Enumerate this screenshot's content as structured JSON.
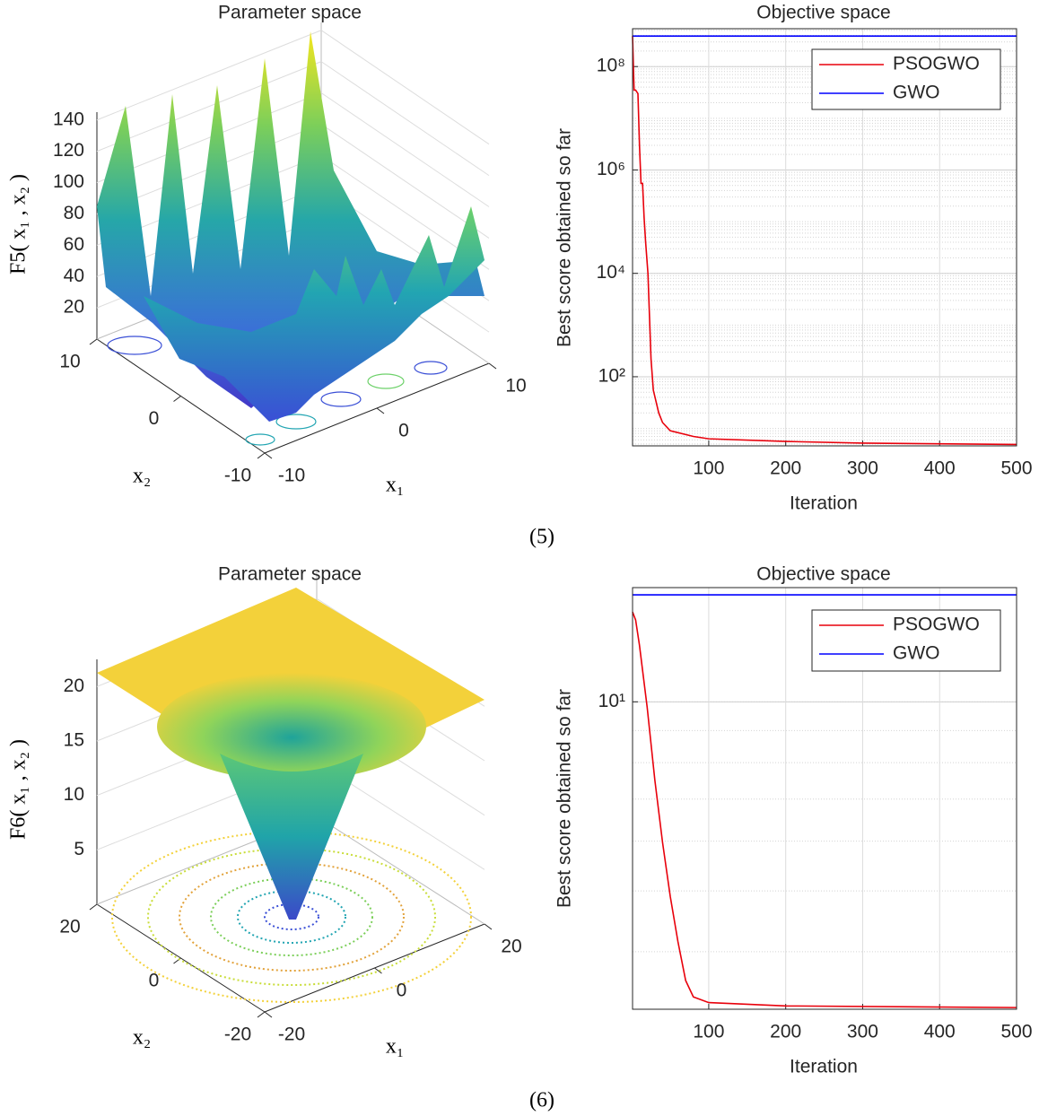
{
  "chart_data": [
    {
      "type": "surface3d",
      "title": "Parameter space",
      "zlabel": "F5( x₁ , x₂ )",
      "xlabel": "x₁",
      "ylabel": "x₂",
      "xlim": [
        -10,
        10
      ],
      "xticks": [
        -10,
        0,
        10
      ],
      "ylim": [
        -10,
        10
      ],
      "yticks": [
        -10,
        0,
        10
      ],
      "zlim": [
        0,
        145
      ],
      "zticks": [
        20,
        40,
        60,
        80,
        100,
        120,
        140
      ],
      "grid": true
    },
    {
      "type": "line",
      "title": "Objective space",
      "xlabel": "Iteration",
      "ylabel": "Best score obtained so far",
      "log_y": true,
      "grid": true,
      "minor_grid": true,
      "legend": "northeast",
      "xlim": [
        1,
        500
      ],
      "xticks": [
        100,
        200,
        300,
        400,
        500
      ],
      "ylim": [
        4.6,
        540000000
      ],
      "yticks": [
        {
          "value": 100,
          "label": "10²"
        },
        {
          "value": 10000,
          "label": "10⁴"
        },
        {
          "value": 1000000,
          "label": "10⁶"
        },
        {
          "value": 100000000,
          "label": "10⁸"
        }
      ],
      "series": [
        {
          "name": "PSOGWO",
          "color": "#e8000b",
          "x": [
            1,
            3,
            5,
            8,
            10,
            12,
            14,
            16,
            18,
            21,
            25,
            28,
            35,
            40,
            50,
            80,
            100,
            200,
            300,
            500
          ],
          "values": [
            390000000,
            35000000,
            35000000,
            30000000,
            3000000,
            550000,
            550000,
            120000,
            40000,
            10000,
            220,
            55,
            20,
            13,
            9,
            7,
            6.3,
            5.6,
            5.2,
            4.9
          ]
        },
        {
          "name": "GWO",
          "color": "#0000ff",
          "x": [
            1,
            500
          ],
          "values": [
            390000000,
            390000000
          ]
        }
      ]
    },
    {
      "type": "surface3d",
      "title": "Parameter space",
      "zlabel": "F6( x₁ , x₂ )",
      "xlabel": "x₁",
      "ylabel": "x₂",
      "xlim": [
        -20,
        20
      ],
      "xticks": [
        -20,
        0,
        20
      ],
      "ylim": [
        -20,
        20
      ],
      "yticks": [
        -20,
        0,
        20
      ],
      "zlim": [
        0,
        22.5
      ],
      "zticks": [
        5,
        10,
        15,
        20
      ],
      "grid": true
    },
    {
      "type": "line",
      "title": "Objective space",
      "xlabel": "Iteration",
      "ylabel": "Best score obtained so far",
      "log_y": true,
      "grid": true,
      "minor_grid": true,
      "legend": "northeast",
      "xlim": [
        1,
        500
      ],
      "xticks": [
        100,
        200,
        300,
        400,
        500
      ],
      "ylim": [
        3.24,
        15.2
      ],
      "yticks": [
        {
          "value": 10,
          "label": "10¹"
        }
      ],
      "series": [
        {
          "name": "PSOGWO",
          "color": "#e8000b",
          "x": [
            1,
            5,
            10,
            20,
            30,
            40,
            50,
            60,
            70,
            80,
            100,
            200,
            500
          ],
          "values": [
            13.9,
            13.5,
            12.3,
            9.8,
            7.5,
            5.97,
            4.9,
            4.15,
            3.6,
            3.39,
            3.32,
            3.28,
            3.26
          ]
        },
        {
          "name": "GWO",
          "color": "#0000ff",
          "x": [
            1,
            500
          ],
          "values": [
            14.8,
            14.8
          ]
        }
      ]
    }
  ],
  "captions": [
    "(5)",
    "(6)"
  ]
}
